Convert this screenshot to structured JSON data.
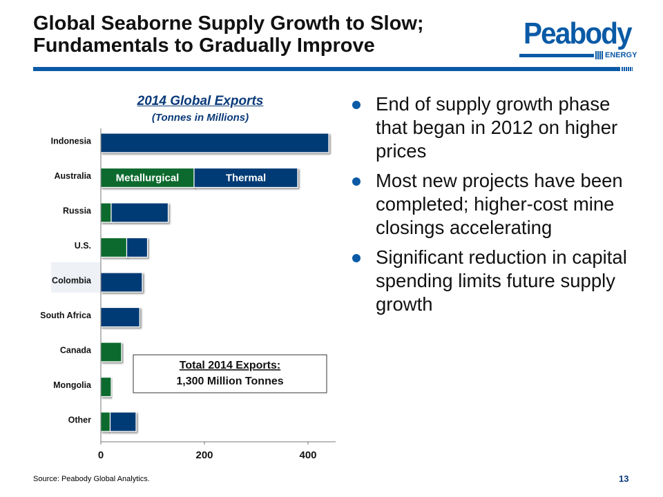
{
  "slide": {
    "title_line1": "Global Seaborne Supply Growth to Slow;",
    "title_line2": "Fundamentals  to Gradually Improve",
    "logo_text": "Peabody",
    "logo_sub": "ENERGY",
    "brand_color": "#0a5aa6",
    "source": "Source:  Peabody Global Analytics.",
    "page_number": "13"
  },
  "bullets": [
    "End of supply growth phase that began in 2012 on higher prices",
    "Most new projects have been completed; higher-cost mine closings accelerating",
    "Significant reduction in capital spending limits future supply growth"
  ],
  "chart_data": {
    "type": "bar",
    "orientation": "horizontal",
    "stacked": true,
    "title": "2014 Global Exports",
    "subtitle": "(Tonnes in Millions)",
    "categories": [
      "Indonesia",
      "Australia",
      "Russia",
      "U.S.",
      "Colombia",
      "South Africa",
      "Canada",
      "Mongolia",
      "Other"
    ],
    "series": [
      {
        "name": "Metallurgical",
        "color": "#0a6b2e",
        "values": [
          0,
          180,
          20,
          50,
          0,
          0,
          40,
          20,
          18
        ]
      },
      {
        "name": "Thermal",
        "color": "#063a74",
        "values": [
          440,
          200,
          110,
          40,
          80,
          75,
          0,
          0,
          50
        ]
      }
    ],
    "xlim": [
      0,
      450
    ],
    "xticks": [
      0,
      200,
      400
    ],
    "highlighted_category": "Colombia",
    "annotation_line1": "Total 2014 Exports:",
    "annotation_line2": "1,300 Million  Tonnes"
  }
}
